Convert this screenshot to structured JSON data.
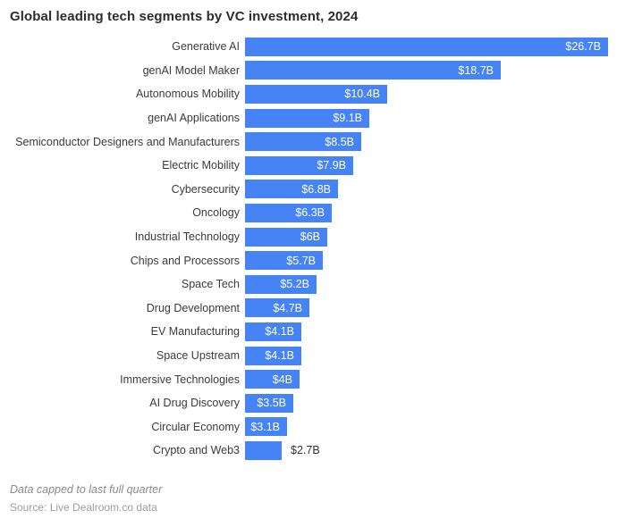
{
  "chart_data": {
    "type": "bar",
    "orientation": "horizontal",
    "title": "Global leading tech segments by VC investment, 2024",
    "categories": [
      "Generative AI",
      "genAI Model Maker",
      "Autonomous Mobility",
      "genAI Applications",
      "Semiconductor Designers and Manufacturers",
      "Electric Mobility",
      "Cybersecurity",
      "Oncology",
      "Industrial Technology",
      "Chips and Processors",
      "Space Tech",
      "Drug Development",
      "EV Manufacturing",
      "Space Upstream",
      "Immersive Technologies",
      "AI Drug Discovery",
      "Circular Economy",
      "Crypto and Web3"
    ],
    "values": [
      26.7,
      18.7,
      10.4,
      9.1,
      8.5,
      7.9,
      6.8,
      6.3,
      6,
      5.7,
      5.2,
      4.7,
      4.1,
      4.1,
      4,
      3.5,
      3.1,
      2.7
    ],
    "value_labels": [
      "$26.7B",
      "$18.7B",
      "$10.4B",
      "$9.1B",
      "$8.5B",
      "$7.9B",
      "$6.8B",
      "$6.3B",
      "$6B",
      "$5.7B",
      "$5.2B",
      "$4.7B",
      "$4.1B",
      "$4.1B",
      "$4B",
      "$3.5B",
      "$3.1B",
      "$2.7B"
    ],
    "xlabel": "",
    "ylabel": "",
    "xlim": [
      0,
      26.7
    ],
    "grid": false,
    "legend": false,
    "bar_color": "#4684F5",
    "value_label_color_inside": "#ffffff",
    "value_label_color_outside": "#333333"
  },
  "footer": {
    "note": "Data capped to last full quarter",
    "source": "Source: Live Dealroom.co data"
  }
}
